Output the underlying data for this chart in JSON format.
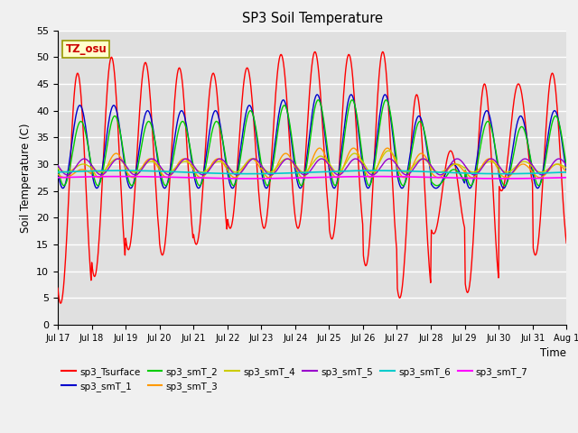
{
  "title": "SP3 Soil Temperature",
  "ylabel": "Soil Temperature (C)",
  "xlabel": "Time",
  "timezone_label": "TZ_osu",
  "ylim": [
    0,
    55
  ],
  "yticks": [
    0,
    5,
    10,
    15,
    20,
    25,
    30,
    35,
    40,
    45,
    50,
    55
  ],
  "xtick_labels": [
    "Jul 17",
    "Jul 18",
    "Jul 19",
    "Jul 20",
    "Jul 21",
    "Jul 22",
    "Jul 23",
    "Jul 24",
    "Jul 25",
    "Jul 26",
    "Jul 27",
    "Jul 28",
    "Jul 29",
    "Jul 30",
    "Jul 31",
    "Aug 1"
  ],
  "series_colors": {
    "sp3_Tsurface": "#ff0000",
    "sp3_smT_1": "#0000cc",
    "sp3_smT_2": "#00cc00",
    "sp3_smT_3": "#ff9900",
    "sp3_smT_4": "#cccc00",
    "sp3_smT_5": "#9900cc",
    "sp3_smT_6": "#00cccc",
    "sp3_smT_7": "#ff00ff"
  },
  "background_color": "#f0f0f0",
  "plot_bg_color": "#e0e0e0",
  "grid_color": "#ffffff",
  "n_days": 15,
  "pts_per_day": 48,
  "figwidth": 6.4,
  "figheight": 4.8,
  "dpi": 100
}
